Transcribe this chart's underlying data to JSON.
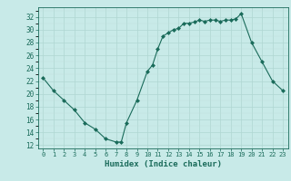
{
  "x": [
    0,
    1,
    2,
    3,
    4,
    5,
    6,
    7,
    7.5,
    8,
    9,
    10,
    10.5,
    11,
    11.5,
    12,
    12.5,
    13,
    13.5,
    14,
    14.5,
    15,
    15.5,
    16,
    16.5,
    17,
    17.5,
    18,
    18.5,
    19,
    20,
    21,
    22,
    23
  ],
  "y": [
    22.5,
    20.5,
    19.0,
    17.5,
    15.5,
    14.5,
    13.0,
    12.5,
    12.5,
    15.5,
    19.0,
    23.5,
    24.5,
    27.0,
    29.0,
    29.5,
    30.0,
    30.2,
    31.0,
    31.0,
    31.2,
    31.5,
    31.3,
    31.5,
    31.5,
    31.3,
    31.5,
    31.5,
    31.7,
    32.5,
    28.0,
    25.0,
    22.0,
    20.5
  ],
  "xlabel": "Humidex (Indice chaleur)",
  "xlim": [
    -0.5,
    23.5
  ],
  "ylim": [
    11.5,
    33.5
  ],
  "yticks": [
    12,
    14,
    16,
    18,
    20,
    22,
    24,
    26,
    28,
    30,
    32
  ],
  "xticks": [
    0,
    1,
    2,
    3,
    4,
    5,
    6,
    7,
    8,
    9,
    10,
    11,
    12,
    13,
    14,
    15,
    16,
    17,
    18,
    19,
    20,
    21,
    22,
    23
  ],
  "line_color": "#1a6b5a",
  "marker_color": "#1a6b5a",
  "bg_color": "#c8eae8",
  "grid_major_color": "#afd6d2",
  "grid_minor_color": "#c0e0dc",
  "axis_color": "#1a6b5a",
  "text_color": "#1a6b5a"
}
